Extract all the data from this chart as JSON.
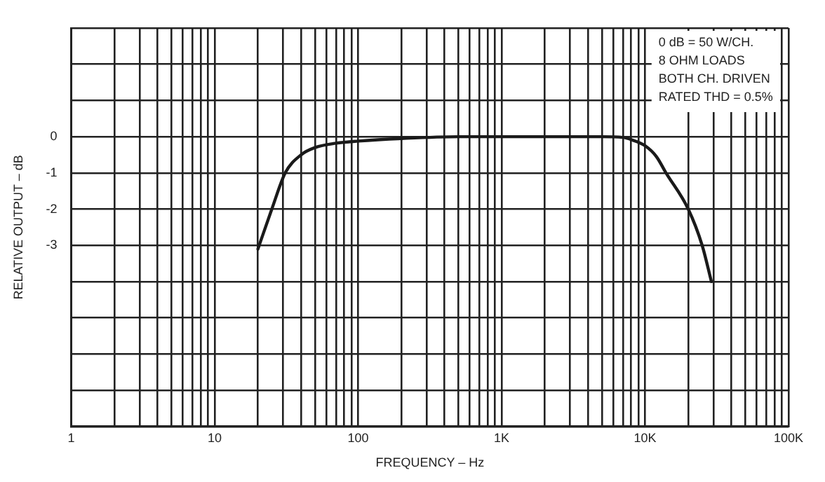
{
  "chart_data": {
    "type": "line",
    "xlabel": "FREQUENCY – Hz",
    "ylabel": "RELATIVE OUTPUT – dB",
    "log": "x",
    "grid": true,
    "legend": false,
    "marker": "none",
    "line_style": "solid",
    "xlim": [
      1,
      100000
    ],
    "xticks": [
      1,
      {
        "value": 2,
        "label": null
      },
      {
        "value": 3,
        "label": null
      },
      {
        "value": 4,
        "label": null
      },
      {
        "value": 5,
        "label": null
      },
      {
        "value": 6,
        "label": null
      },
      {
        "value": 7,
        "label": null
      },
      {
        "value": 8,
        "label": null
      },
      {
        "value": 9,
        "label": null
      },
      10,
      {
        "value": 20,
        "label": null
      },
      {
        "value": 30,
        "label": null
      },
      {
        "value": 40,
        "label": null
      },
      {
        "value": 50,
        "label": null
      },
      {
        "value": 60,
        "label": null
      },
      {
        "value": 70,
        "label": null
      },
      {
        "value": 80,
        "label": null
      },
      {
        "value": 90,
        "label": null
      },
      100,
      {
        "value": 200,
        "label": null
      },
      {
        "value": 300,
        "label": null
      },
      {
        "value": 400,
        "label": null
      },
      {
        "value": 500,
        "label": null
      },
      {
        "value": 600,
        "label": null
      },
      {
        "value": 700,
        "label": null
      },
      {
        "value": 800,
        "label": null
      },
      {
        "value": 900,
        "label": null
      },
      {
        "value": 1000,
        "label": "1K"
      },
      {
        "value": 2000,
        "label": null
      },
      {
        "value": 3000,
        "label": null
      },
      {
        "value": 4000,
        "label": null
      },
      {
        "value": 5000,
        "label": null
      },
      {
        "value": 6000,
        "label": null
      },
      {
        "value": 7000,
        "label": null
      },
      {
        "value": 8000,
        "label": null
      },
      {
        "value": 9000,
        "label": null
      },
      {
        "value": 10000,
        "label": "10K"
      },
      {
        "value": 20000,
        "label": null
      },
      {
        "value": 30000,
        "label": null
      },
      {
        "value": 40000,
        "label": null
      },
      {
        "value": 50000,
        "label": null
      },
      {
        "value": 60000,
        "label": null
      },
      {
        "value": 70000,
        "label": null
      },
      {
        "value": 80000,
        "label": null
      },
      {
        "value": 90000,
        "label": null
      },
      {
        "value": 100000,
        "label": "100K"
      }
    ],
    "ylim": [
      -8,
      3
    ],
    "yticks": [
      {
        "value": -8,
        "label": null
      },
      {
        "value": -7,
        "label": null
      },
      {
        "value": -6,
        "label": null
      },
      {
        "value": -5,
        "label": null
      },
      {
        "value": -4,
        "label": null
      },
      -3,
      -2,
      -1,
      0,
      {
        "value": 1,
        "label": null
      },
      {
        "value": 2,
        "label": null
      },
      {
        "value": 3,
        "label": null
      }
    ],
    "annotations": [
      "0 dB = 50 W/CH.",
      "8 OHM LOADS",
      "BOTH CH. DRIVEN",
      "RATED THD = 0.5%"
    ],
    "series": [
      {
        "color": "#1a1a1a",
        "x": [
          20,
          25,
          31,
          40,
          50,
          70,
          100,
          200,
          500,
          1000,
          5000,
          7000,
          8000,
          10000,
          12000,
          14000,
          20000,
          25000,
          29000
        ],
        "values": [
          -3.1,
          -2,
          -1,
          -0.5,
          -0.3,
          -0.18,
          -0.12,
          -0.05,
          0,
          0,
          0,
          -0.02,
          -0.08,
          -0.25,
          -0.55,
          -1,
          -2,
          -3,
          -4
        ]
      }
    ]
  }
}
